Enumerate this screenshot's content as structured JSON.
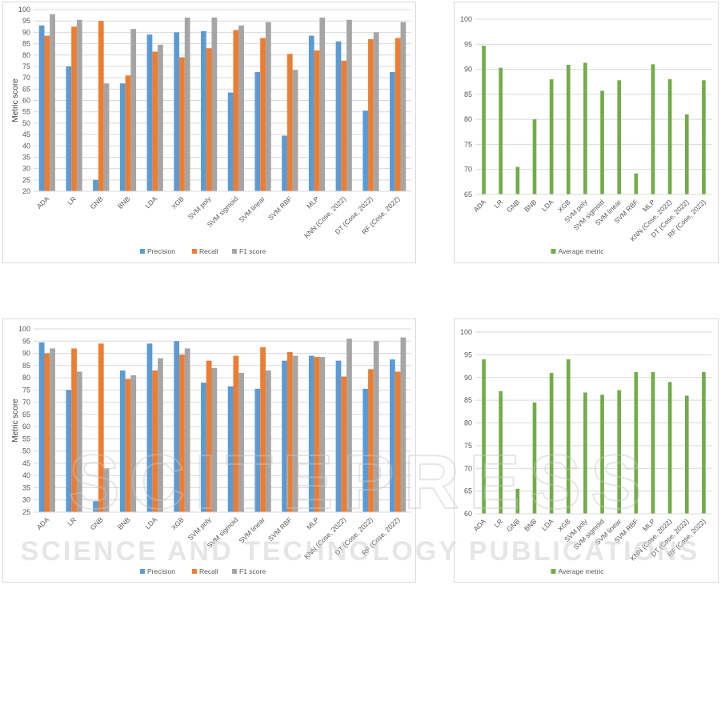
{
  "chart_data": [
    {
      "type": "bar",
      "ylabel": "Metric score",
      "ylim": [
        20,
        100
      ],
      "ytick_step": 5,
      "grid": true,
      "legend_position": "bottom",
      "categories": [
        "ADA",
        "LR",
        "GNB",
        "BNB",
        "LDA",
        "XGB",
        "SVM poly",
        "SVM sigmoid",
        "SVM linear",
        "SVM RBF",
        "MLP",
        "KNN (Cose, 2022)",
        "DT (Cose, 2022)",
        "RF (Cose, 2022)"
      ],
      "series": [
        {
          "name": "Precision",
          "color": "#5b9bd5",
          "values": [
            93,
            75,
            25,
            67.5,
            89,
            90,
            90.5,
            63.5,
            72.5,
            44.5,
            88.5,
            86,
            55.5,
            72.5
          ]
        },
        {
          "name": "Recall",
          "color": "#ed7d31",
          "values": [
            88.5,
            92.5,
            95,
            71,
            81.5,
            79,
            83,
            91,
            87.5,
            80.5,
            82,
            77.5,
            87,
            87.5
          ]
        },
        {
          "name": "F1 score",
          "color": "#a5a5a5",
          "values": [
            98,
            95.5,
            67.5,
            91.5,
            84.5,
            96.5,
            96.5,
            93,
            94.5,
            73.5,
            96.5,
            95.5,
            90,
            94.5
          ]
        }
      ]
    },
    {
      "type": "bar",
      "ylabel": "",
      "ylim": [
        65,
        100
      ],
      "ytick_step": 5,
      "grid": true,
      "legend_position": "bottom",
      "categories": [
        "ADA",
        "LR",
        "GNB",
        "BNB",
        "LDA",
        "XGB",
        "SVM poly",
        "SVM sigmoid",
        "SVM linear",
        "SVM RBF",
        "MLP",
        "KNN (Cose, 2022)",
        "DT (Cose, 2022)",
        "RF (Cose, 2022)"
      ],
      "series": [
        {
          "name": "Average metric",
          "color": "#70ad47",
          "values": [
            94.7,
            90.3,
            70.5,
            80,
            88,
            90.9,
            91.3,
            85.7,
            87.8,
            69.2,
            91,
            88,
            81,
            87.8
          ]
        }
      ]
    },
    {
      "type": "bar",
      "ylabel": "Metric score",
      "ylim": [
        25,
        100
      ],
      "ytick_step": 5,
      "grid": true,
      "legend_position": "bottom",
      "categories": [
        "ADA",
        "LR",
        "GNB",
        "BNB",
        "LDA",
        "XGB",
        "SVM poly",
        "SVM sigmoid",
        "SVM linear",
        "SVM RBF",
        "MLP",
        "KNN (Cose, 2022)",
        "DT (Cose, 2022)",
        "RF (Cose, 2022)"
      ],
      "series": [
        {
          "name": "Precision",
          "color": "#5b9bd5",
          "values": [
            94.5,
            75,
            29.5,
            83,
            94,
            95,
            78,
            76.5,
            75.5,
            87,
            89,
            87,
            75.5,
            87.5
          ]
        },
        {
          "name": "Recall",
          "color": "#ed7d31",
          "values": [
            90,
            92,
            94,
            79.5,
            83,
            89.5,
            87,
            89,
            92.5,
            90.5,
            88.5,
            80.5,
            83.5,
            82.5
          ]
        },
        {
          "name": "F1 score",
          "color": "#a5a5a5",
          "values": [
            92,
            82.5,
            43,
            81,
            88,
            92,
            84,
            82,
            83,
            89,
            88.5,
            96,
            95,
            96.5
          ]
        }
      ]
    },
    {
      "type": "bar",
      "ylabel": "",
      "ylim": [
        60,
        100
      ],
      "ytick_step": 5,
      "grid": true,
      "legend_position": "bottom",
      "categories": [
        "ADA",
        "LR",
        "GNB",
        "BNB",
        "LDA",
        "XGB",
        "SVM poly",
        "SVM sigmoid",
        "SVM linear",
        "SVM RBF",
        "MLP",
        "KNN (Cose, 2022)",
        "DT (Cose, 2022)",
        "RF (Cose, 2022)"
      ],
      "series": [
        {
          "name": "Average metric",
          "color": "#70ad47",
          "values": [
            94,
            87,
            65.5,
            84.5,
            91,
            94,
            86.7,
            86.2,
            87.2,
            91.2,
            91.2,
            89,
            86,
            91.2
          ]
        }
      ]
    }
  ],
  "watermark": {
    "line1": "SCITEPRESS",
    "line2": "SCIENCE AND TECHNOLOGY PUBLICATIONS"
  }
}
